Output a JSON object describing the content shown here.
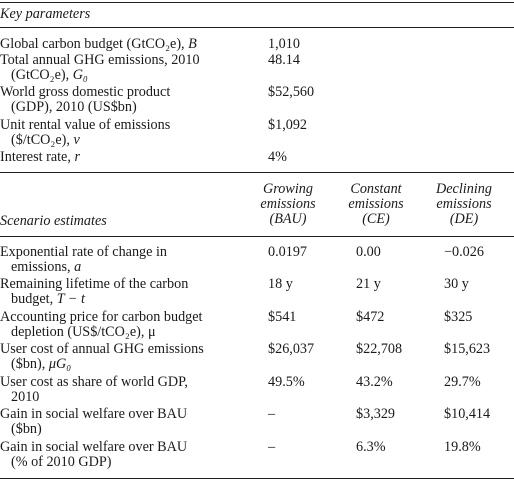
{
  "key_parameters": {
    "title": "Key parameters",
    "rows": [
      {
        "label_1": "Global carbon budget (GtCO₂e), ",
        "sym": "B",
        "label_2": "",
        "value": "1,010"
      },
      {
        "label_1": "Total annual GHG emissions, 2010",
        "label_2_a": "(GtCO₂e), ",
        "sym": "G₀",
        "value": "48.14"
      },
      {
        "label_1": "World gross domestic product",
        "label_2": "(GDP), 2010 (US$bn)",
        "value": "$52,560"
      },
      {
        "label_1": "Unit rental value of emissions",
        "label_2_a": "($/tCO₂e), ",
        "sym": "v",
        "value": "$1,092"
      },
      {
        "label_1": "Interest rate, ",
        "sym": "r",
        "value": "4%"
      }
    ]
  },
  "scenario": {
    "title": "Scenario estimates",
    "columns": [
      {
        "l1": "Growing",
        "l2": "emissions",
        "l3": "(BAU)"
      },
      {
        "l1": "Constant",
        "l2": "emissions",
        "l3": "(CE)"
      },
      {
        "l1": "Declining",
        "l2": "emissions",
        "l3": "(DE)"
      }
    ],
    "rows": [
      {
        "label_1": "Exponential rate of change in",
        "label_2_a": "emissions, ",
        "sym": "a",
        "values": [
          "0.0197",
          "0.00",
          "−0.026"
        ]
      },
      {
        "label_1": "Remaining lifetime of the carbon",
        "label_2_a": "budget, ",
        "sym": "T − t",
        "values": [
          "18 y",
          "21 y",
          "30 y"
        ]
      },
      {
        "label_1": "Accounting price for carbon budget",
        "label_2_a": "depletion (US$/tCO₂e), ",
        "sym": "μ",
        "values": [
          "$541",
          "$472",
          "$325"
        ]
      },
      {
        "label_1": "User cost of annual GHG emissions",
        "label_2_a": "($bn), ",
        "sym": "μG₀",
        "values": [
          "$26,037",
          "$22,708",
          "$15,623"
        ]
      },
      {
        "label_1": "User cost as share of world GDP,",
        "label_2": "2010",
        "values": [
          "49.5%",
          "43.2%",
          "29.7%"
        ]
      },
      {
        "label_1": "Gain in social welfare over BAU",
        "label_2": "($bn)",
        "values": [
          "–",
          "$3,329",
          "$10,414"
        ]
      },
      {
        "label_1": "Gain in social welfare over BAU",
        "label_2": "(% of 2010 GDP)",
        "values": [
          "–",
          "6.3%",
          "19.8%"
        ]
      }
    ]
  }
}
